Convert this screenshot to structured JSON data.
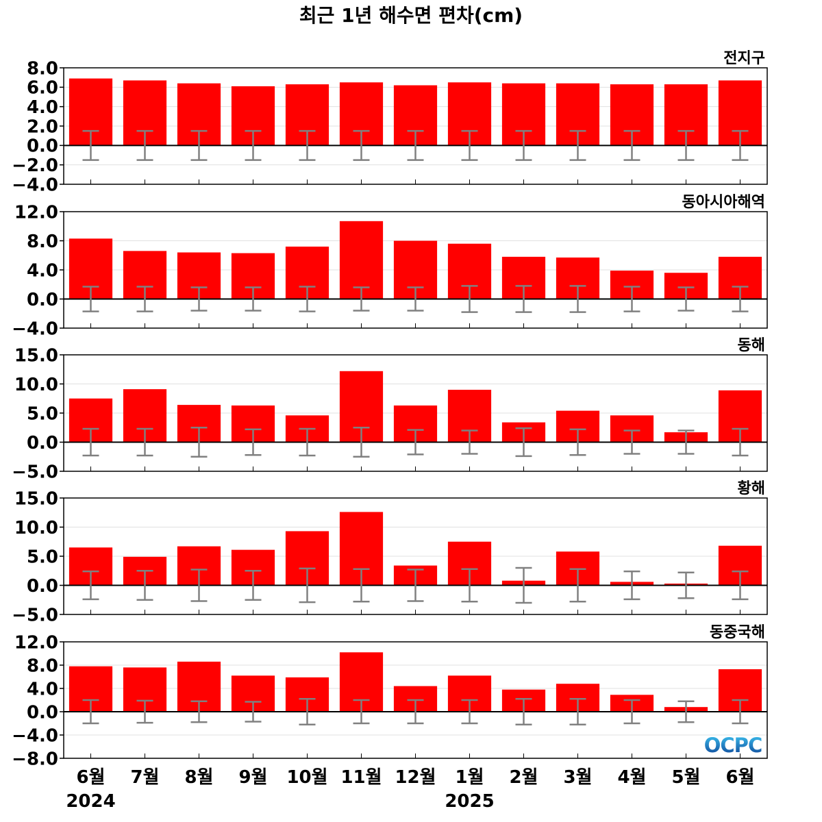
{
  "logo": {
    "text": "OCPC"
  },
  "colors": {
    "bar": "#ff0000",
    "error_bar": "#808080",
    "zero_line": "#000000",
    "grid": "#e0e0e0",
    "frame": "#000000",
    "logo_light": "#3ec6f2",
    "logo_dark": "#0b3f94"
  },
  "chart_data": {
    "type": "bar",
    "title": "최근 1년 해수면 편차(cm)",
    "categories": [
      "6월",
      "7월",
      "8월",
      "9월",
      "10월",
      "11월",
      "12월",
      "1월",
      "2월",
      "3월",
      "4월",
      "5월",
      "6월"
    ],
    "x_group_labels": [
      {
        "label": "2024",
        "category_index": 0
      },
      {
        "label": "2025",
        "category_index": 7
      }
    ],
    "error_center": 0,
    "subplots": [
      {
        "title": "전지구",
        "ylim": [
          -4,
          8
        ],
        "yticks": [
          -4,
          -2,
          0,
          2,
          4,
          6,
          8
        ],
        "yticklabels": [
          "−4.0",
          "−2.0",
          "0.0",
          "2.0",
          "4.0",
          "6.0",
          "8.0"
        ],
        "values": [
          6.9,
          6.7,
          6.4,
          6.1,
          6.3,
          6.5,
          6.2,
          6.5,
          6.4,
          6.4,
          6.3,
          6.3,
          6.7
        ],
        "errors": [
          1.5,
          1.5,
          1.5,
          1.5,
          1.5,
          1.5,
          1.5,
          1.5,
          1.5,
          1.5,
          1.5,
          1.5,
          1.5
        ]
      },
      {
        "title": "동아시아해역",
        "ylim": [
          -4,
          12
        ],
        "yticks": [
          -4,
          0,
          4,
          8,
          12
        ],
        "yticklabels": [
          "−4.0",
          "0.0",
          "4.0",
          "8.0",
          "12.0"
        ],
        "values": [
          8.3,
          6.6,
          6.4,
          6.3,
          7.2,
          10.7,
          8.0,
          7.6,
          5.8,
          5.7,
          3.9,
          3.6,
          5.8
        ],
        "errors": [
          1.7,
          1.7,
          1.6,
          1.6,
          1.7,
          1.6,
          1.6,
          1.8,
          1.8,
          1.8,
          1.7,
          1.6,
          1.7
        ]
      },
      {
        "title": "동해",
        "ylim": [
          -5,
          15
        ],
        "yticks": [
          -5,
          0,
          5,
          10,
          15
        ],
        "yticklabels": [
          "−5.0",
          "0.0",
          "5.0",
          "10.0",
          "15.0"
        ],
        "values": [
          7.5,
          9.1,
          6.4,
          6.3,
          4.6,
          12.2,
          6.3,
          9.0,
          3.4,
          5.4,
          4.6,
          1.7,
          8.9
        ],
        "errors": [
          2.3,
          2.3,
          2.5,
          2.2,
          2.3,
          2.5,
          2.1,
          2.0,
          2.4,
          2.2,
          2.0,
          2.0,
          2.3
        ]
      },
      {
        "title": "황해",
        "ylim": [
          -5,
          15
        ],
        "yticks": [
          -5,
          0,
          5,
          10,
          15
        ],
        "yticklabels": [
          "−5.0",
          "0.0",
          "5.0",
          "10.0",
          "15.0"
        ],
        "values": [
          6.5,
          4.9,
          6.7,
          6.1,
          9.3,
          12.6,
          3.4,
          7.5,
          0.8,
          5.8,
          0.6,
          0.3,
          6.8
        ],
        "errors": [
          2.4,
          2.5,
          2.7,
          2.5,
          2.9,
          2.8,
          2.7,
          2.8,
          3.0,
          2.8,
          2.4,
          2.2,
          2.4
        ]
      },
      {
        "title": "동중국해",
        "ylim": [
          -8,
          12
        ],
        "yticks": [
          -8,
          -4,
          0,
          4,
          8,
          12
        ],
        "yticklabels": [
          "−8.0",
          "−4.0",
          "0.0",
          "4.0",
          "8.0",
          "12.0"
        ],
        "values": [
          7.8,
          7.6,
          8.6,
          6.2,
          5.9,
          10.2,
          4.4,
          6.2,
          3.8,
          4.8,
          2.9,
          0.8,
          7.3
        ],
        "errors": [
          2.0,
          1.9,
          1.8,
          1.7,
          2.2,
          2.0,
          2.0,
          2.0,
          2.2,
          2.2,
          2.0,
          1.8,
          2.0
        ]
      }
    ]
  }
}
